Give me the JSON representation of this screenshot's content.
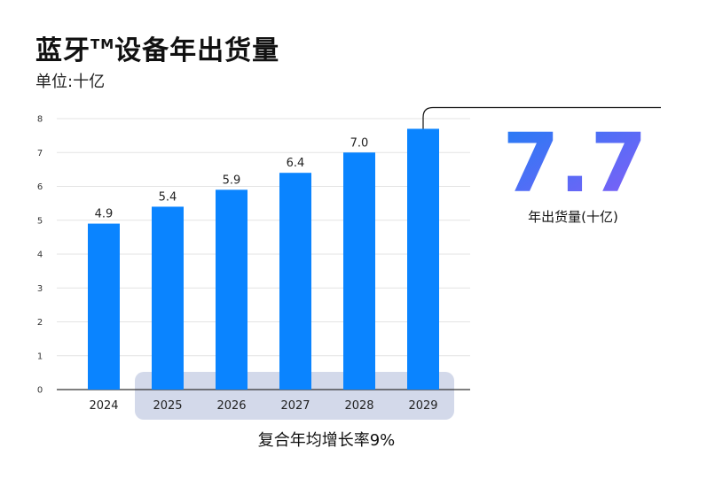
{
  "header": {
    "title": "蓝牙",
    "title_mark": "TM",
    "title_suffix": "设备年出货量",
    "unit": "单位:十亿"
  },
  "colors": {
    "bar": "#0a84ff",
    "highlight_band": "#d3d9ea",
    "grid": "#e3e3e3",
    "axis": "#333333",
    "callout_gradient": [
      "#1f7df5",
      "#8b5cf6"
    ]
  },
  "callout": {
    "value": "7.7",
    "caption": "年出货量(十亿)"
  },
  "cagr": {
    "label": "复合年均增长率9%"
  },
  "chart_data": {
    "type": "bar",
    "categories": [
      "2024",
      "2025",
      "2026",
      "2027",
      "2028",
      "2029"
    ],
    "values": [
      4.9,
      5.4,
      5.9,
      6.4,
      7.0,
      7.7
    ],
    "value_labels": [
      "4.9",
      "5.4",
      "5.9",
      "6.4",
      "7.0",
      ""
    ],
    "yticks": [
      "0",
      "1",
      "2",
      "3",
      "4",
      "5",
      "6",
      "7",
      "8"
    ],
    "ylim": [
      0,
      8
    ],
    "grid": true,
    "highlight_categories": [
      "2025",
      "2026",
      "2027",
      "2028",
      "2029"
    ]
  }
}
